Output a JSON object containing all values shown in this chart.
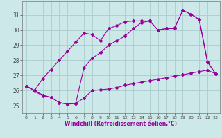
{
  "s1_x": [
    0,
    1,
    2,
    3,
    4,
    5,
    6,
    7,
    8,
    9,
    10,
    11,
    12,
    13,
    14,
    15,
    16,
    17,
    18,
    19,
    20,
    21,
    22,
    23
  ],
  "s1_y": [
    26.3,
    26.0,
    26.8,
    27.4,
    28.0,
    28.6,
    29.2,
    29.8,
    29.7,
    29.3,
    30.1,
    30.3,
    30.55,
    30.6,
    30.6,
    30.6,
    30.0,
    30.1,
    30.1,
    31.3,
    31.05,
    30.7,
    27.9,
    27.1
  ],
  "s2_x": [
    0,
    1,
    2,
    3,
    4,
    5,
    6,
    7,
    8,
    9,
    10,
    11,
    12,
    13,
    14,
    15,
    16,
    17,
    18,
    19,
    20,
    21,
    22,
    23
  ],
  "s2_y": [
    26.3,
    26.0,
    25.7,
    25.55,
    25.2,
    25.1,
    25.15,
    27.5,
    28.15,
    28.5,
    29.0,
    29.3,
    29.6,
    30.1,
    30.5,
    30.6,
    30.0,
    30.1,
    30.15,
    31.3,
    31.05,
    30.7,
    27.9,
    27.1
  ],
  "s3_x": [
    0,
    1,
    2,
    3,
    4,
    5,
    6,
    7,
    8,
    9,
    10,
    11,
    12,
    13,
    14,
    15,
    16,
    17,
    18,
    19,
    20,
    21,
    22,
    23
  ],
  "s3_y": [
    26.3,
    25.95,
    25.65,
    25.55,
    25.2,
    25.1,
    25.15,
    25.5,
    26.0,
    26.05,
    26.1,
    26.2,
    26.35,
    26.45,
    26.55,
    26.65,
    26.75,
    26.85,
    26.95,
    27.05,
    27.15,
    27.25,
    27.35,
    27.1
  ],
  "color": "#990099",
  "bg_color": "#cce8e8",
  "grid_color": "#aacccc",
  "xlabel": "Windchill (Refroidissement éolien,°C)",
  "ylim_min": 24.5,
  "ylim_max": 31.9,
  "xlim_min": -0.5,
  "xlim_max": 23.5,
  "yticks": [
    25,
    26,
    27,
    28,
    29,
    30,
    31
  ],
  "xticks": [
    0,
    1,
    2,
    3,
    4,
    5,
    6,
    7,
    8,
    9,
    10,
    11,
    12,
    13,
    14,
    15,
    16,
    17,
    18,
    19,
    20,
    21,
    22,
    23
  ]
}
